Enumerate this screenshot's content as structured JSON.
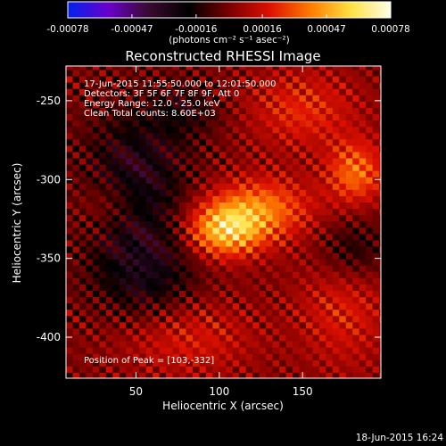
{
  "chart_data": {
    "type": "heatmap",
    "title": "Reconstructed RHESSI Image",
    "xlabel": "Heliocentric X (arcsec)",
    "ylabel": "Heliocentric Y (arcsec)",
    "xlim": [
      8,
      197
    ],
    "ylim": [
      -426,
      -228
    ],
    "x_ticks": [
      50,
      100,
      150
    ],
    "y_ticks": [
      -250,
      -300,
      -350,
      -400
    ],
    "annotations": [
      "17-Jun-2015 11:55:50.000 to 12:01:50.000",
      "Detectors: 3F 5F 6F 7F 8F 9F, Att 0",
      "Energy Range: 12.0 - 25.0 keV",
      "Clean    Total counts: 8.60E+03"
    ],
    "peak_label": "Position of Peak = [103,-332]",
    "peak": {
      "x": 103,
      "y": -332
    },
    "colorbar": {
      "ticks": [
        "-0.00078",
        "-0.00047",
        "-0.00016",
        "0.00016",
        "0.00047",
        "0.00078"
      ],
      "range": [
        -0.00078,
        0.00078
      ],
      "units_label": "(photons cm⁻² s⁻¹ asec⁻²)",
      "colors": [
        "#0022ee",
        "#6a00cc",
        "#3a0a30",
        "#000000",
        "#7a0000",
        "#dd1000",
        "#ff7a00",
        "#ffe040",
        "#ffffe8"
      ]
    },
    "sources": [
      {
        "x": 103,
        "y": -332,
        "sx": 16,
        "sy": 12,
        "amp": 1.0
      },
      {
        "x": 125,
        "y": -318,
        "sx": 22,
        "sy": 14,
        "amp": 0.72
      },
      {
        "x": 182,
        "y": -295,
        "sx": 12,
        "sy": 14,
        "amp": 0.7
      },
      {
        "x": 150,
        "y": -255,
        "sx": 24,
        "sy": 18,
        "amp": 0.45
      },
      {
        "x": 175,
        "y": -378,
        "sx": 20,
        "sy": 30,
        "amp": 0.4
      },
      {
        "x": 80,
        "y": -400,
        "sx": 30,
        "sy": 18,
        "amp": 0.38
      },
      {
        "x": 35,
        "y": -315,
        "sx": 14,
        "sy": 12,
        "amp": 0.3
      },
      {
        "x": 50,
        "y": -300,
        "sx": 22,
        "sy": 30,
        "amp": -0.55
      },
      {
        "x": 55,
        "y": -360,
        "sx": 22,
        "sy": 22,
        "amp": -0.5
      },
      {
        "x": 180,
        "y": -345,
        "sx": 16,
        "sy": 16,
        "amp": -0.45
      },
      {
        "x": 80,
        "y": -255,
        "sx": 16,
        "sy": 12,
        "amp": -0.3
      }
    ]
  },
  "footer_timestamp": "18-Jun-2015 16:24"
}
